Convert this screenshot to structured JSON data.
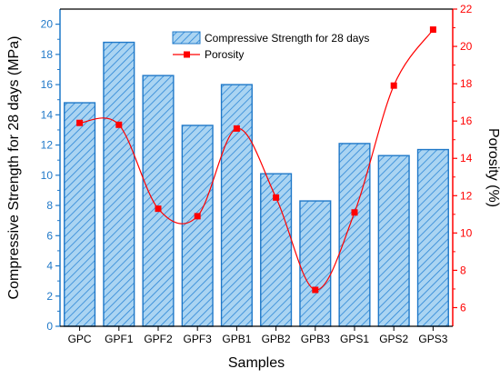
{
  "chart_data": {
    "type": "bar",
    "categories": [
      "GPC",
      "GPF1",
      "GPF2",
      "GPF3",
      "GPB1",
      "GPB2",
      "GPB3",
      "GPS1",
      "GPS2",
      "GPS3"
    ],
    "series": [
      {
        "name": "Compressive Strength for 28 days",
        "type": "bar",
        "axis": "left",
        "color": "#1f78c8",
        "fill": "#aad4f2",
        "values": [
          14.8,
          18.8,
          16.6,
          13.3,
          16.0,
          10.1,
          8.3,
          12.1,
          11.3,
          11.7
        ]
      },
      {
        "name": "Porosity",
        "type": "line",
        "axis": "right",
        "color": "#ff0000",
        "smooth": true,
        "values": [
          15.9,
          15.8,
          11.3,
          10.9,
          15.6,
          11.9,
          6.95,
          11.1,
          17.9,
          20.9
        ]
      }
    ],
    "xlabel": "Samples",
    "ylabel": "Compressive Strength for 28 days (MPa)",
    "y2label": "Porosity (%)",
    "ylim": [
      0,
      21
    ],
    "y2lim": [
      5,
      22
    ],
    "yticks": [
      0,
      2,
      4,
      6,
      8,
      10,
      12,
      14,
      16,
      18,
      20
    ],
    "y2ticks": [
      6,
      8,
      10,
      12,
      14,
      16,
      18,
      20,
      22
    ],
    "grid": false,
    "legend_position": "top-right",
    "axis_colors": {
      "left": "#1f78c8",
      "right": "#ff0000",
      "bottom": "#000000"
    }
  }
}
